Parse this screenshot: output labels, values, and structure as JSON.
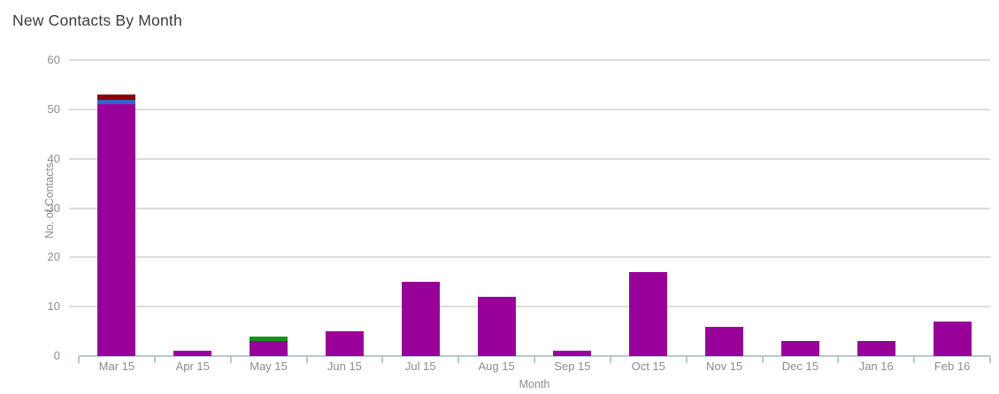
{
  "title": "New Contacts By Month",
  "chart_data": {
    "type": "bar",
    "stacked": true,
    "title": "New Contacts By Month",
    "xlabel": "Month",
    "ylabel": "No. of Contacts",
    "ylim": [
      0,
      60
    ],
    "yticks": [
      0,
      10,
      20,
      30,
      40,
      50,
      60
    ],
    "grid": "horizontal",
    "legend_position": "none",
    "categories": [
      "Mar 15",
      "Apr 15",
      "May 15",
      "Jun 15",
      "Jul 15",
      "Aug 15",
      "Sep 15",
      "Oct 15",
      "Nov 15",
      "Dec 15",
      "Jan 16",
      "Feb 16"
    ],
    "series": [
      {
        "name": "purple-series",
        "color": "#990099",
        "values": [
          51,
          1,
          3,
          5,
          15,
          12,
          1,
          17,
          6,
          3,
          3,
          7
        ]
      },
      {
        "name": "blue-series",
        "color": "#3366CC",
        "values": [
          1,
          0,
          0,
          0,
          0,
          0,
          0,
          0,
          0,
          0,
          0,
          0
        ]
      },
      {
        "name": "dark-red-series",
        "color": "#8B0000",
        "values": [
          1,
          0,
          0,
          0,
          0,
          0,
          0,
          0,
          0,
          0,
          0,
          0
        ]
      },
      {
        "name": "green-series",
        "color": "#109618",
        "values": [
          0,
          0,
          1,
          0,
          0,
          0,
          0,
          0,
          0,
          0,
          0,
          0
        ]
      }
    ],
    "totals": [
      53,
      1,
      4,
      5,
      15,
      12,
      1,
      17,
      6,
      3,
      3,
      7
    ]
  },
  "colors": {
    "background": "#FFFFFF",
    "title_text": "#3C3C3C",
    "axis_text": "#8C8C8C",
    "gridline": "#DBDBDB",
    "axis_line": "#B7C6D9"
  }
}
